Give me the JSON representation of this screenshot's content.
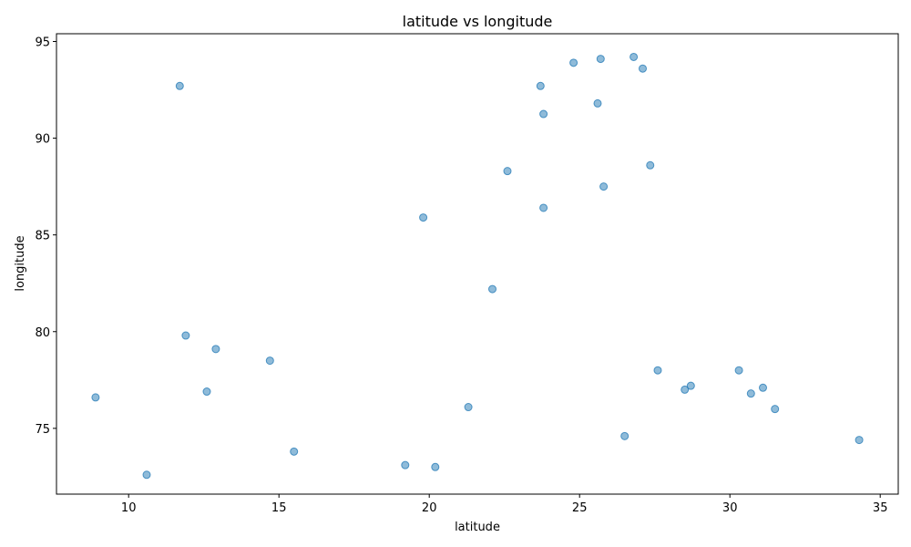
{
  "chart_data": {
    "type": "scatter",
    "title": "latitude vs longitude",
    "xlabel": "latitude",
    "ylabel": "longitude",
    "xlim": [
      7.6,
      35.6
    ],
    "ylim": [
      71.6,
      95.4
    ],
    "xticks": [
      10,
      15,
      20,
      25,
      30,
      35
    ],
    "yticks": [
      75,
      80,
      85,
      90,
      95
    ],
    "grid": false,
    "color": "#1f77b4",
    "points": [
      {
        "x": 11.7,
        "y": 92.7
      },
      {
        "x": 24.8,
        "y": 93.9
      },
      {
        "x": 25.7,
        "y": 94.1
      },
      {
        "x": 26.8,
        "y": 94.2
      },
      {
        "x": 27.1,
        "y": 93.6
      },
      {
        "x": 23.7,
        "y": 92.7
      },
      {
        "x": 25.6,
        "y": 91.8
      },
      {
        "x": 23.8,
        "y": 91.25
      },
      {
        "x": 27.35,
        "y": 88.6
      },
      {
        "x": 22.6,
        "y": 88.3
      },
      {
        "x": 25.8,
        "y": 87.5
      },
      {
        "x": 23.8,
        "y": 86.4
      },
      {
        "x": 19.8,
        "y": 85.9
      },
      {
        "x": 22.1,
        "y": 82.2
      },
      {
        "x": 11.9,
        "y": 79.8
      },
      {
        "x": 12.9,
        "y": 79.1
      },
      {
        "x": 14.7,
        "y": 78.5
      },
      {
        "x": 27.6,
        "y": 78.0
      },
      {
        "x": 30.3,
        "y": 78.0
      },
      {
        "x": 28.7,
        "y": 77.2
      },
      {
        "x": 31.1,
        "y": 77.1
      },
      {
        "x": 28.5,
        "y": 77.0
      },
      {
        "x": 12.6,
        "y": 76.9
      },
      {
        "x": 30.7,
        "y": 76.8
      },
      {
        "x": 8.9,
        "y": 76.6
      },
      {
        "x": 21.3,
        "y": 76.1
      },
      {
        "x": 31.5,
        "y": 76.0
      },
      {
        "x": 26.5,
        "y": 74.6
      },
      {
        "x": 34.3,
        "y": 74.4
      },
      {
        "x": 15.5,
        "y": 73.8
      },
      {
        "x": 19.2,
        "y": 73.1
      },
      {
        "x": 20.2,
        "y": 73.0
      },
      {
        "x": 10.6,
        "y": 72.6
      }
    ]
  }
}
